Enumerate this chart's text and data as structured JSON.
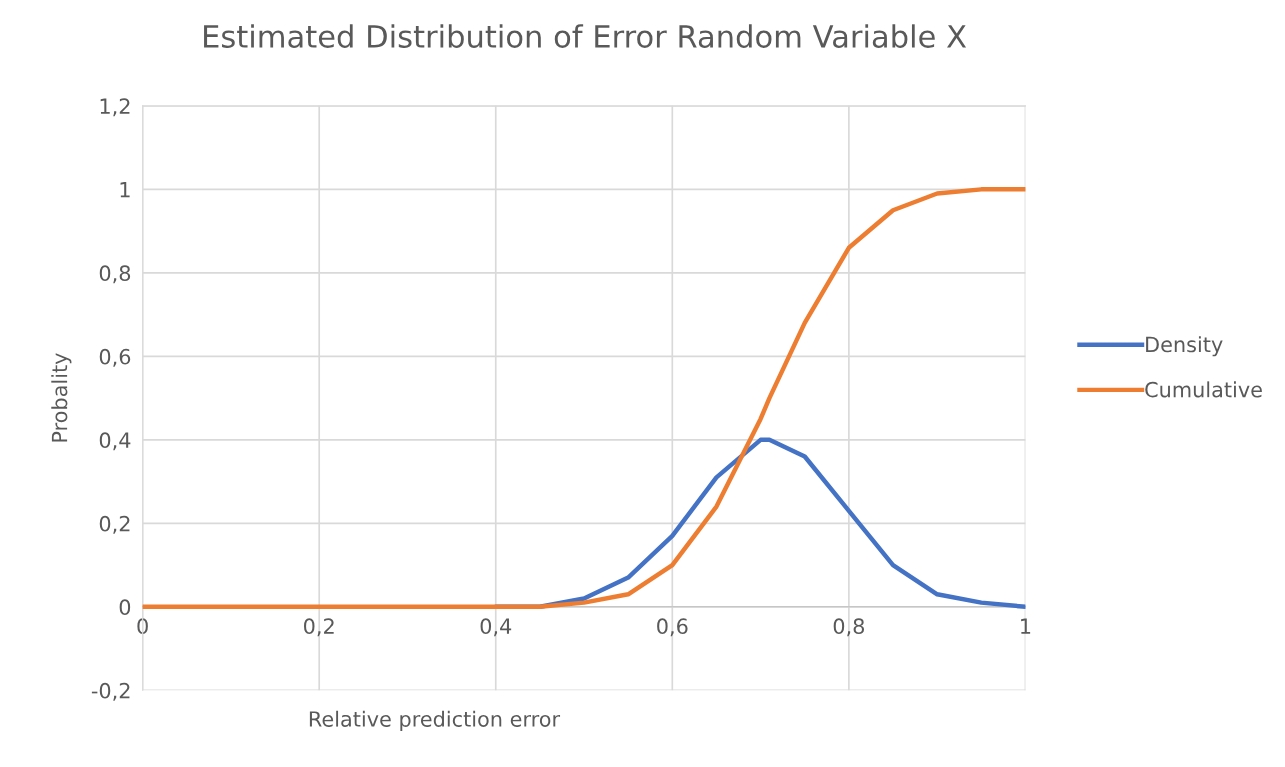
{
  "chart_data": {
    "type": "line",
    "title": "Estimated Distribution of Error Random Variable X",
    "xlabel": "Relative prediction error",
    "ylabel": "Probality",
    "x": [
      0,
      0.35,
      0.4,
      0.45,
      0.5,
      0.55,
      0.6,
      0.65,
      0.7,
      0.71,
      0.75,
      0.8,
      0.85,
      0.9,
      0.95,
      1
    ],
    "series": [
      {
        "name": "Density",
        "color": "#4472c4",
        "values": [
          null,
          null,
          0.0,
          0.0,
          0.02,
          0.07,
          0.17,
          0.31,
          0.4,
          0.4,
          0.36,
          0.23,
          0.1,
          0.03,
          0.01,
          0.0
        ]
      },
      {
        "name": "Cumulative",
        "color": "#ed7d31",
        "values": [
          0,
          0,
          0.0,
          0.0,
          0.01,
          0.03,
          0.1,
          0.24,
          0.45,
          0.5,
          0.68,
          0.86,
          0.95,
          0.99,
          1.0,
          1.0
        ]
      }
    ],
    "xlim": [
      0,
      1
    ],
    "ylim": [
      -0.2,
      1.2
    ],
    "xticks": [
      0,
      {
        "value": 0.2,
        "label": "0,2"
      },
      {
        "value": 0.4,
        "label": "0,4"
      },
      {
        "value": 0.6,
        "label": "0,6"
      },
      {
        "value": 0.8,
        "label": "0,8"
      },
      1
    ],
    "yticks": [
      {
        "value": -0.2,
        "label": "-0,2"
      },
      0,
      {
        "value": 0.2,
        "label": "0,2"
      },
      {
        "value": 0.4,
        "label": "0,4"
      },
      {
        "value": 0.6,
        "label": "0,6"
      },
      {
        "value": 0.8,
        "label": "0,8"
      },
      1,
      {
        "value": 1.2,
        "label": "1,2"
      }
    ],
    "grid": true,
    "legend": "right",
    "line_style": "solid"
  }
}
